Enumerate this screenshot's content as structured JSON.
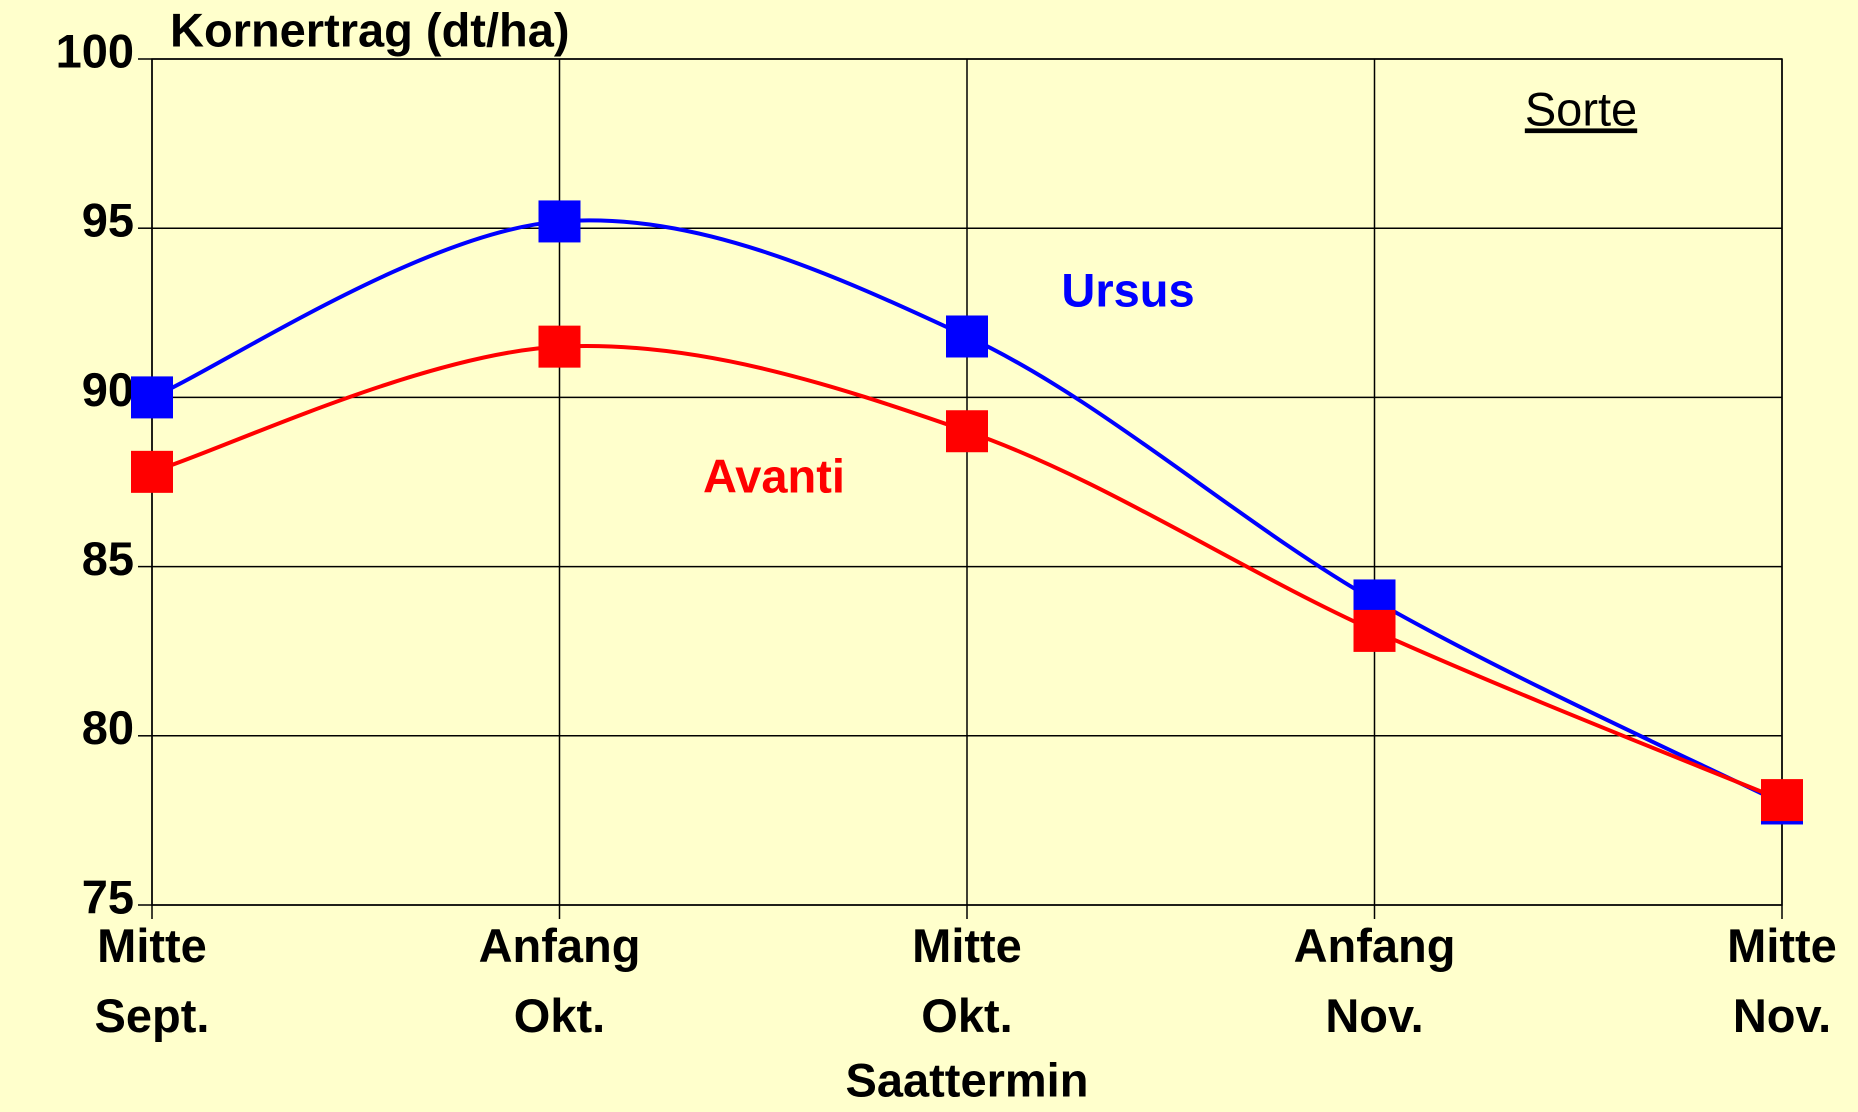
{
  "chart_data": {
    "type": "line",
    "title": "Kornertrag (dt/ha)",
    "x_label": "Saattermin",
    "legend_title": "Sorte",
    "categories": [
      [
        "Mitte",
        "Sept."
      ],
      [
        "Anfang",
        "Okt."
      ],
      [
        "Mitte",
        "Okt."
      ],
      [
        "Anfang",
        "Nov."
      ],
      [
        "Mitte",
        "Nov."
      ]
    ],
    "series": [
      {
        "name": "Ursus",
        "color": "#0000ff",
        "values": [
          90,
          95.2,
          91.8,
          84,
          78
        ]
      },
      {
        "name": "Avanti",
        "color": "#ff0000",
        "values": [
          87.8,
          91.5,
          89,
          83.1,
          78.1
        ]
      }
    ],
    "ylim": [
      75,
      100
    ],
    "yticks": [
      75,
      80,
      85,
      90,
      95,
      100
    ],
    "grid": true
  }
}
